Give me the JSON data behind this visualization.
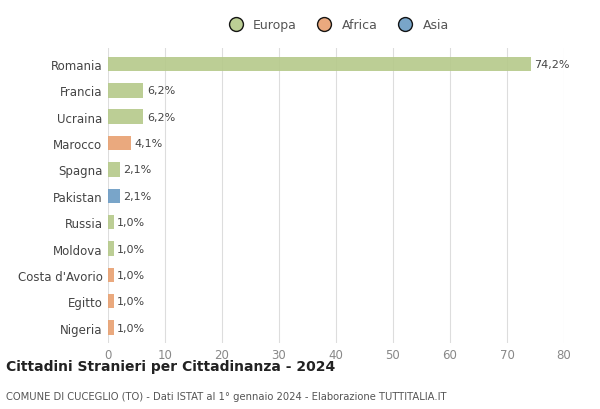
{
  "countries": [
    "Romania",
    "Francia",
    "Ucraina",
    "Marocco",
    "Spagna",
    "Pakistan",
    "Russia",
    "Moldova",
    "Costa d'Avorio",
    "Egitto",
    "Nigeria"
  ],
  "values": [
    74.2,
    6.2,
    6.2,
    4.1,
    2.1,
    2.1,
    1.0,
    1.0,
    1.0,
    1.0,
    1.0
  ],
  "labels": [
    "74,2%",
    "6,2%",
    "6,2%",
    "4,1%",
    "2,1%",
    "2,1%",
    "1,0%",
    "1,0%",
    "1,0%",
    "1,0%",
    "1,0%"
  ],
  "colors": [
    "#b5c98a",
    "#b5c98a",
    "#b5c98a",
    "#e8a070",
    "#b5c98a",
    "#6b9bc4",
    "#b5c98a",
    "#b5c98a",
    "#e8a070",
    "#e8a070",
    "#e8a070"
  ],
  "legend_labels": [
    "Europa",
    "Africa",
    "Asia"
  ],
  "legend_colors": [
    "#b5c98a",
    "#e8a070",
    "#6b9bc4"
  ],
  "title": "Cittadini Stranieri per Cittadinanza - 2024",
  "subtitle": "COMUNE DI CUCEGLIO (TO) - Dati ISTAT al 1° gennaio 2024 - Elaborazione TUTTITALIA.IT",
  "xlim": [
    0,
    80
  ],
  "xticks": [
    0,
    10,
    20,
    30,
    40,
    50,
    60,
    70,
    80
  ],
  "bg_color": "#ffffff",
  "grid_color": "#dddddd",
  "bar_height": 0.55
}
